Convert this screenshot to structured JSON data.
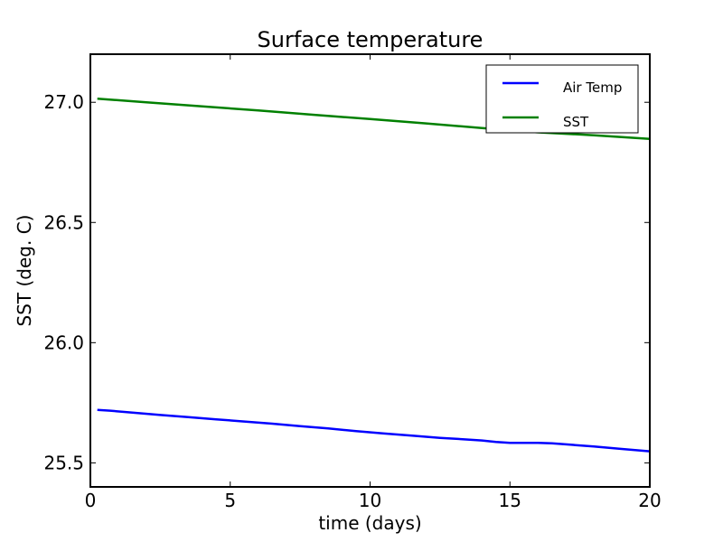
{
  "chart_data": {
    "type": "line",
    "title": "Surface temperature",
    "xlabel": "time (days)",
    "ylabel": "SST (deg. C)",
    "xlim": [
      0,
      20
    ],
    "ylim": [
      25.4,
      27.2
    ],
    "xticks": [
      0,
      5,
      10,
      15,
      20
    ],
    "xtick_labels": [
      "0",
      "5",
      "10",
      "15",
      "20"
    ],
    "yticks": [
      25.5,
      26.0,
      26.5,
      27.0
    ],
    "ytick_labels": [
      "25.5",
      "26.0",
      "26.5",
      "27.0"
    ],
    "grid": false,
    "legend_position": "top-right",
    "series": [
      {
        "name": "Air Temp",
        "color": "#0000ff",
        "x": [
          0.25,
          0.7,
          1.5,
          2.5,
          3.5,
          4.5,
          5.5,
          6.5,
          7.5,
          8.5,
          9.5,
          10.5,
          11.5,
          12.5,
          13.5,
          14.0,
          14.5,
          15.0,
          15.5,
          16.0,
          16.5,
          17.0,
          18.0,
          19.0,
          20.0
        ],
        "y": [
          25.72,
          25.717,
          25.709,
          25.699,
          25.69,
          25.681,
          25.672,
          25.663,
          25.653,
          25.643,
          25.632,
          25.622,
          25.613,
          25.604,
          25.597,
          25.593,
          25.587,
          25.583,
          25.583,
          25.583,
          25.581,
          25.577,
          25.568,
          25.558,
          25.548
        ]
      },
      {
        "name": "SST",
        "color": "#008000",
        "x": [
          0.25,
          2.0,
          4.0,
          6.0,
          8.0,
          10.0,
          12.0,
          14.0,
          16.0,
          18.0,
          20.0
        ],
        "y": [
          27.015,
          27.0,
          26.983,
          26.966,
          26.948,
          26.93,
          26.912,
          26.893,
          26.875,
          26.863,
          26.848
        ]
      }
    ]
  }
}
